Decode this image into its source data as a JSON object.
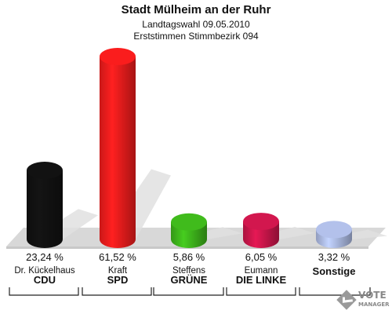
{
  "header": {
    "title": "Stadt Mülheim an der Ruhr",
    "subtitle": "Landtagswahl 09.05.2010",
    "subtitle2": "Erststimmen Stimmbezirk 094"
  },
  "colors": {
    "CDU": "#111111",
    "SPD": "#ee1c1c",
    "GRUENE": "#3db21b",
    "LINKE": "#c8164a",
    "Sonstige": "#aab8e0",
    "floor": "#d8d8d8",
    "shadow": "#e0e0e0"
  },
  "chart_data": {
    "type": "bar",
    "categories": [
      "CDU",
      "SPD",
      "GRÜNE",
      "DIE LINKE",
      "Sonstige"
    ],
    "candidates": [
      "Dr. Kückelhaus",
      "Kraft",
      "Steffens",
      "Eumann",
      ""
    ],
    "values": [
      23.24,
      61.52,
      5.86,
      6.05,
      3.32
    ],
    "value_labels": [
      "23,24 %",
      "61,52 %",
      "5,86 %",
      "6,05 %",
      "3,32 %"
    ],
    "ylim": [
      0,
      61.52
    ],
    "grid": false,
    "legend": "none"
  },
  "logo": {
    "name": "votemanager-logo",
    "text": "VOTE",
    "sub": "MANAGER"
  }
}
